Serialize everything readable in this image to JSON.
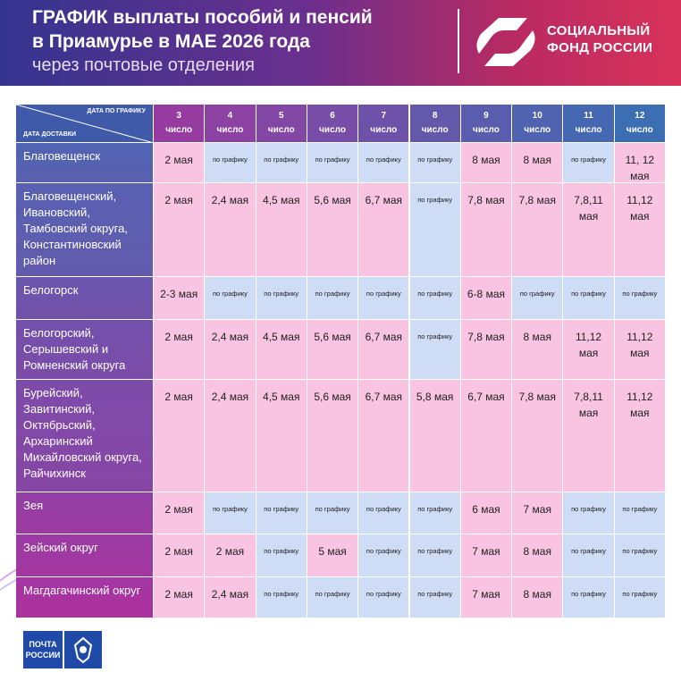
{
  "header": {
    "title_line1": "ГРАФИК выплаты пособий и пенсий",
    "title_line2": "в Приамурье в МАЕ 2026 года",
    "subtitle": "через почтовые отделения",
    "logo_line1": "СОЦИАЛЬНЫЙ",
    "logo_line2": "ФОНД РОССИИ"
  },
  "table": {
    "corner_top": "ДАТА ПО ГРАФИКУ",
    "corner_bottom": "ДАТА ДОСТАВКИ",
    "columns": [
      {
        "day": "3",
        "label": "число"
      },
      {
        "day": "4",
        "label": "число"
      },
      {
        "day": "5",
        "label": "число"
      },
      {
        "day": "6",
        "label": "число"
      },
      {
        "day": "7",
        "label": "число"
      },
      {
        "day": "8",
        "label": "число"
      },
      {
        "day": "9",
        "label": "число"
      },
      {
        "day": "10",
        "label": "число"
      },
      {
        "day": "11",
        "label": "число"
      },
      {
        "day": "12",
        "label": "число"
      }
    ],
    "rows": [
      {
        "name": "Благовещенск",
        "cells": [
          {
            "text": "2 мая",
            "color": "#f8c4e1"
          },
          {
            "text": "по графику",
            "color": "#cfdcf6"
          },
          {
            "text": "по графику",
            "color": "#cfdcf6"
          },
          {
            "text": "по графику",
            "color": "#cfdcf6"
          },
          {
            "text": "по графику",
            "color": "#cfdcf6"
          },
          {
            "text": "по графику",
            "color": "#cfdcf6"
          },
          {
            "text": "8 мая",
            "color": "#f8c4e1"
          },
          {
            "text": "8 мая",
            "color": "#f8c4e1"
          },
          {
            "text": "по графику",
            "color": "#cfdcf6"
          },
          {
            "text": "11, 12 мая",
            "color": "#f8c4e1"
          }
        ]
      },
      {
        "name": "Благовещенский, Ивановский, Тамбовский округа, Константиновский район",
        "cells": [
          {
            "text": "2 мая",
            "color": "#f8c4e1"
          },
          {
            "text": "2,4 мая",
            "color": "#f8c4e1"
          },
          {
            "text": "4,5 мая",
            "color": "#f8c4e1"
          },
          {
            "text": "5,6 мая",
            "color": "#f8c4e1"
          },
          {
            "text": "6,7 мая",
            "color": "#f8c4e1"
          },
          {
            "text": "по графику",
            "color": "#cfdcf6"
          },
          {
            "text": "7,8 мая",
            "color": "#f8c4e1"
          },
          {
            "text": "7,8 мая",
            "color": "#f8c4e1"
          },
          {
            "text": "7,8,11 мая",
            "color": "#f8c4e1"
          },
          {
            "text": "11,12 мая",
            "color": "#f8c4e1"
          }
        ]
      },
      {
        "name": "Белогорск",
        "cells": [
          {
            "text": "2-3 мая",
            "color": "#f8c4e1"
          },
          {
            "text": "по графику",
            "color": "#cfdcf6"
          },
          {
            "text": "по графику",
            "color": "#cfdcf6"
          },
          {
            "text": "по графику",
            "color": "#cfdcf6"
          },
          {
            "text": "по графику",
            "color": "#cfdcf6"
          },
          {
            "text": "по графику",
            "color": "#cfdcf6"
          },
          {
            "text": "6-8 мая",
            "color": "#f8c4e1"
          },
          {
            "text": "по графику",
            "color": "#cfdcf6"
          },
          {
            "text": "по графику",
            "color": "#cfdcf6"
          },
          {
            "text": "по графику",
            "color": "#cfdcf6"
          }
        ]
      },
      {
        "name": "Белогорский, Серышевский и Ромненский округа",
        "cells": [
          {
            "text": "2 мая",
            "color": "#f8c4e1"
          },
          {
            "text": "2,4 мая",
            "color": "#f8c4e1"
          },
          {
            "text": "4,5 мая",
            "color": "#f8c4e1"
          },
          {
            "text": "5,6 мая",
            "color": "#f8c4e1"
          },
          {
            "text": "6,7 мая",
            "color": "#f8c4e1"
          },
          {
            "text": "по графику",
            "color": "#cfdcf6"
          },
          {
            "text": "7,8 мая",
            "color": "#f8c4e1"
          },
          {
            "text": "8 мая",
            "color": "#f8c4e1"
          },
          {
            "text": "11,12 мая",
            "color": "#f8c4e1"
          },
          {
            "text": "11,12 мая",
            "color": "#f8c4e1"
          }
        ]
      },
      {
        "name": "Бурейский, Завитинский, Октябрьский, Архаринский Михайловский округа, Райчихинск",
        "cells": [
          {
            "text": "2 мая",
            "color": "#f8c4e1"
          },
          {
            "text": "2,4 мая",
            "color": "#f8c4e1"
          },
          {
            "text": "4,5 мая",
            "color": "#f8c4e1"
          },
          {
            "text": "5,6 мая",
            "color": "#f8c4e1"
          },
          {
            "text": "6,7 мая",
            "color": "#f8c4e1"
          },
          {
            "text": "5,8 мая",
            "color": "#f8c4e1"
          },
          {
            "text": "6,7 мая",
            "color": "#f8c4e1"
          },
          {
            "text": "7,8 мая",
            "color": "#f8c4e1"
          },
          {
            "text": "7,8,11 мая",
            "color": "#f8c4e1"
          },
          {
            "text": "11,12 мая",
            "color": "#f8c4e1"
          }
        ]
      },
      {
        "name": "Зея",
        "cells": [
          {
            "text": "2 мая",
            "color": "#f8c4e1"
          },
          {
            "text": "по графику",
            "color": "#cfdcf6"
          },
          {
            "text": "по графику",
            "color": "#cfdcf6"
          },
          {
            "text": "по графику",
            "color": "#cfdcf6"
          },
          {
            "text": "по графику",
            "color": "#cfdcf6"
          },
          {
            "text": "по графику",
            "color": "#cfdcf6"
          },
          {
            "text": "6 мая",
            "color": "#f8c4e1"
          },
          {
            "text": "7 мая",
            "color": "#f8c4e1"
          },
          {
            "text": "по графику",
            "color": "#cfdcf6"
          },
          {
            "text": "по графику",
            "color": "#cfdcf6"
          }
        ]
      },
      {
        "name": "Зейский округ",
        "cells": [
          {
            "text": "2 мая",
            "color": "#f8c4e1"
          },
          {
            "text": "2 мая",
            "color": "#f8c4e1"
          },
          {
            "text": "по графику",
            "color": "#cfdcf6"
          },
          {
            "text": "5 мая",
            "color": "#f8c4e1"
          },
          {
            "text": "по графику",
            "color": "#cfdcf6"
          },
          {
            "text": "по графику",
            "color": "#cfdcf6"
          },
          {
            "text": "7 мая",
            "color": "#f8c4e1"
          },
          {
            "text": "8 мая",
            "color": "#f8c4e1"
          },
          {
            "text": "по графику",
            "color": "#cfdcf6"
          },
          {
            "text": "по графику",
            "color": "#cfdcf6"
          }
        ]
      },
      {
        "name": "Магдагачинский округ",
        "cells": [
          {
            "text": "2 мая",
            "color": "#f8c4e1"
          },
          {
            "text": "2,4 мая",
            "color": "#f8c4e1"
          },
          {
            "text": "по графику",
            "color": "#cfdcf6"
          },
          {
            "text": "по графику",
            "color": "#cfdcf6"
          },
          {
            "text": "по графику",
            "color": "#cfdcf6"
          },
          {
            "text": "по графику",
            "color": "#cfdcf6"
          },
          {
            "text": "7 мая",
            "color": "#f8c4e1"
          },
          {
            "text": "8 мая",
            "color": "#f8c4e1"
          },
          {
            "text": "по графику",
            "color": "#cfdcf6"
          },
          {
            "text": "по графику",
            "color": "#cfdcf6"
          }
        ]
      }
    ]
  },
  "footer": {
    "post_line1": "ПОЧТА",
    "post_line2": "РОССИИ"
  }
}
